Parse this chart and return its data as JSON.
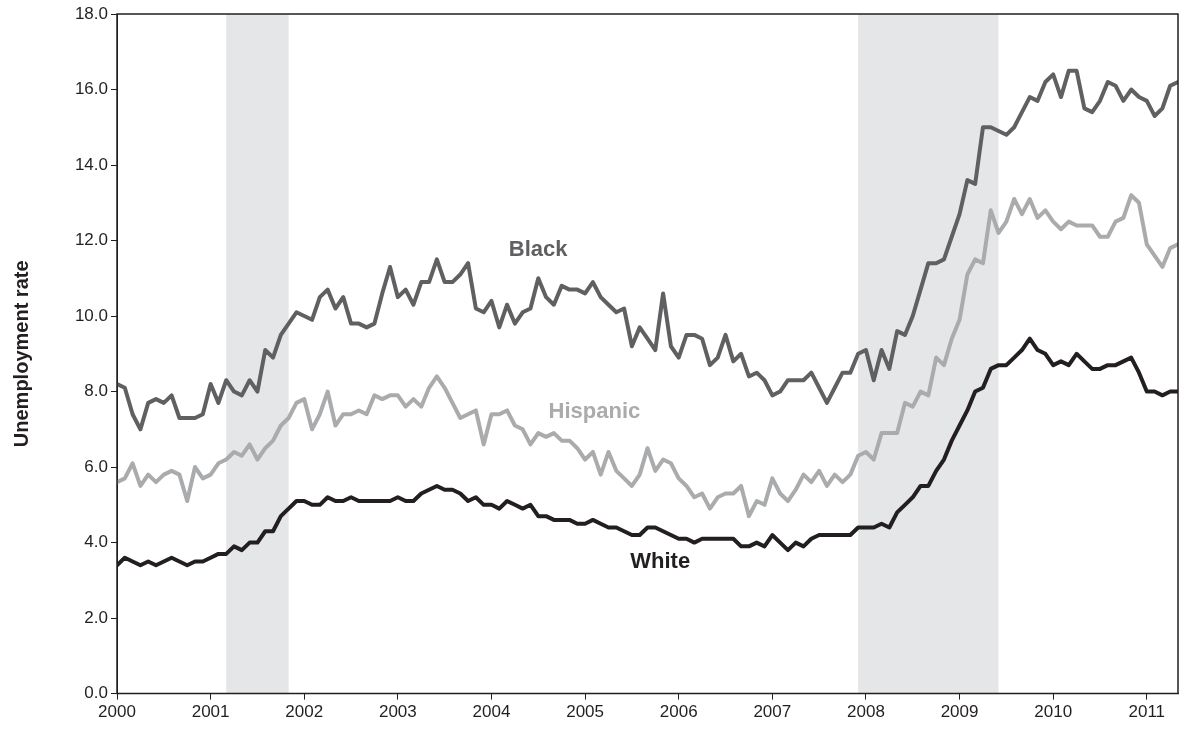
{
  "chart_data": {
    "type": "line",
    "ylabel": "Unemployment rate",
    "x": [
      "2000-01",
      "2000-02",
      "2000-03",
      "2000-04",
      "2000-05",
      "2000-06",
      "2000-07",
      "2000-08",
      "2000-09",
      "2000-10",
      "2000-11",
      "2000-12",
      "2001-01",
      "2001-02",
      "2001-03",
      "2001-04",
      "2001-05",
      "2001-06",
      "2001-07",
      "2001-08",
      "2001-09",
      "2001-10",
      "2001-11",
      "2001-12",
      "2002-01",
      "2002-02",
      "2002-03",
      "2002-04",
      "2002-05",
      "2002-06",
      "2002-07",
      "2002-08",
      "2002-09",
      "2002-10",
      "2002-11",
      "2002-12",
      "2003-01",
      "2003-02",
      "2003-03",
      "2003-04",
      "2003-05",
      "2003-06",
      "2003-07",
      "2003-08",
      "2003-09",
      "2003-10",
      "2003-11",
      "2003-12",
      "2004-01",
      "2004-02",
      "2004-03",
      "2004-04",
      "2004-05",
      "2004-06",
      "2004-07",
      "2004-08",
      "2004-09",
      "2004-10",
      "2004-11",
      "2004-12",
      "2005-01",
      "2005-02",
      "2005-03",
      "2005-04",
      "2005-05",
      "2005-06",
      "2005-07",
      "2005-08",
      "2005-09",
      "2005-10",
      "2005-11",
      "2005-12",
      "2006-01",
      "2006-02",
      "2006-03",
      "2006-04",
      "2006-05",
      "2006-06",
      "2006-07",
      "2006-08",
      "2006-09",
      "2006-10",
      "2006-11",
      "2006-12",
      "2007-01",
      "2007-02",
      "2007-03",
      "2007-04",
      "2007-05",
      "2007-06",
      "2007-07",
      "2007-08",
      "2007-09",
      "2007-10",
      "2007-11",
      "2007-12",
      "2008-01",
      "2008-02",
      "2008-03",
      "2008-04",
      "2008-05",
      "2008-06",
      "2008-07",
      "2008-08",
      "2008-09",
      "2008-10",
      "2008-11",
      "2008-12",
      "2009-01",
      "2009-02",
      "2009-03",
      "2009-04",
      "2009-05",
      "2009-06",
      "2009-07",
      "2009-08",
      "2009-09",
      "2009-10",
      "2009-11",
      "2009-12",
      "2010-01",
      "2010-02",
      "2010-03",
      "2010-04",
      "2010-05",
      "2010-06",
      "2010-07",
      "2010-08",
      "2010-09",
      "2010-10",
      "2010-11",
      "2010-12",
      "2011-01",
      "2011-02",
      "2011-03",
      "2011-04",
      "2011-05"
    ],
    "series": [
      {
        "name": "Black",
        "color": "#606062",
        "values": [
          8.2,
          8.1,
          7.4,
          7.0,
          7.7,
          7.8,
          7.7,
          7.9,
          7.3,
          7.3,
          7.3,
          7.4,
          8.2,
          7.7,
          8.3,
          8.0,
          7.9,
          8.3,
          8.0,
          9.1,
          8.9,
          9.5,
          9.8,
          10.1,
          10.0,
          9.9,
          10.5,
          10.7,
          10.2,
          10.5,
          9.8,
          9.8,
          9.7,
          9.8,
          10.6,
          11.3,
          10.5,
          10.7,
          10.3,
          10.9,
          10.9,
          11.5,
          10.9,
          10.9,
          11.1,
          11.4,
          10.2,
          10.1,
          10.4,
          9.7,
          10.3,
          9.8,
          10.1,
          10.2,
          11.0,
          10.5,
          10.3,
          10.8,
          10.7,
          10.7,
          10.6,
          10.9,
          10.5,
          10.3,
          10.1,
          10.2,
          9.2,
          9.7,
          9.4,
          9.1,
          10.6,
          9.2,
          8.9,
          9.5,
          9.5,
          9.4,
          8.7,
          8.9,
          9.5,
          8.8,
          9.0,
          8.4,
          8.5,
          8.3,
          7.9,
          8.0,
          8.3,
          8.3,
          8.3,
          8.5,
          8.1,
          7.7,
          8.1,
          8.5,
          8.5,
          9.0,
          9.1,
          8.3,
          9.1,
          8.6,
          9.6,
          9.5,
          10.0,
          10.7,
          11.4,
          11.4,
          11.5,
          12.1,
          12.7,
          13.6,
          13.5,
          15.0,
          15.0,
          14.9,
          14.8,
          15.0,
          15.4,
          15.8,
          15.7,
          16.2,
          16.4,
          15.8,
          16.5,
          16.5,
          15.5,
          15.4,
          15.7,
          16.2,
          16.1,
          15.7,
          16.0,
          15.8,
          15.7,
          15.3,
          15.5,
          16.1,
          16.2
        ]
      },
      {
        "name": "Hispanic",
        "color": "#aaabad",
        "values": [
          5.6,
          5.7,
          6.1,
          5.5,
          5.8,
          5.6,
          5.8,
          5.9,
          5.8,
          5.1,
          6.0,
          5.7,
          5.8,
          6.1,
          6.2,
          6.4,
          6.3,
          6.6,
          6.2,
          6.5,
          6.7,
          7.1,
          7.3,
          7.7,
          7.8,
          7.0,
          7.4,
          8.0,
          7.1,
          7.4,
          7.4,
          7.5,
          7.4,
          7.9,
          7.8,
          7.9,
          7.9,
          7.6,
          7.8,
          7.6,
          8.1,
          8.4,
          8.1,
          7.7,
          7.3,
          7.4,
          7.5,
          6.6,
          7.4,
          7.4,
          7.5,
          7.1,
          7.0,
          6.6,
          6.9,
          6.8,
          6.9,
          6.7,
          6.7,
          6.5,
          6.2,
          6.4,
          5.8,
          6.4,
          5.9,
          5.7,
          5.5,
          5.8,
          6.5,
          5.9,
          6.2,
          6.1,
          5.7,
          5.5,
          5.2,
          5.3,
          4.9,
          5.2,
          5.3,
          5.3,
          5.5,
          4.7,
          5.1,
          5.0,
          5.7,
          5.3,
          5.1,
          5.4,
          5.8,
          5.6,
          5.9,
          5.5,
          5.8,
          5.6,
          5.8,
          6.3,
          6.4,
          6.2,
          6.9,
          6.9,
          6.9,
          7.7,
          7.6,
          8.0,
          7.9,
          8.9,
          8.7,
          9.4,
          9.9,
          11.1,
          11.5,
          11.4,
          12.8,
          12.2,
          12.5,
          13.1,
          12.7,
          13.1,
          12.6,
          12.8,
          12.5,
          12.3,
          12.5,
          12.4,
          12.4,
          12.4,
          12.1,
          12.1,
          12.5,
          12.6,
          13.2,
          13.0,
          11.9,
          11.6,
          11.3,
          11.8,
          11.9
        ]
      },
      {
        "name": "White",
        "color": "#231f20",
        "values": [
          3.4,
          3.6,
          3.5,
          3.4,
          3.5,
          3.4,
          3.5,
          3.6,
          3.5,
          3.4,
          3.5,
          3.5,
          3.6,
          3.7,
          3.7,
          3.9,
          3.8,
          4.0,
          4.0,
          4.3,
          4.3,
          4.7,
          4.9,
          5.1,
          5.1,
          5.0,
          5.0,
          5.2,
          5.1,
          5.1,
          5.2,
          5.1,
          5.1,
          5.1,
          5.1,
          5.1,
          5.2,
          5.1,
          5.1,
          5.3,
          5.4,
          5.5,
          5.4,
          5.4,
          5.3,
          5.1,
          5.2,
          5.0,
          5.0,
          4.9,
          5.1,
          5.0,
          4.9,
          5.0,
          4.7,
          4.7,
          4.6,
          4.6,
          4.6,
          4.5,
          4.5,
          4.6,
          4.5,
          4.4,
          4.4,
          4.3,
          4.2,
          4.2,
          4.4,
          4.4,
          4.3,
          4.2,
          4.1,
          4.1,
          4.0,
          4.1,
          4.1,
          4.1,
          4.1,
          4.1,
          3.9,
          3.9,
          4.0,
          3.9,
          4.2,
          4.0,
          3.8,
          4.0,
          3.9,
          4.1,
          4.2,
          4.2,
          4.2,
          4.2,
          4.2,
          4.4,
          4.4,
          4.4,
          4.5,
          4.4,
          4.8,
          5.0,
          5.2,
          5.5,
          5.5,
          5.9,
          6.2,
          6.7,
          7.1,
          7.5,
          8.0,
          8.1,
          8.6,
          8.7,
          8.7,
          8.9,
          9.1,
          9.4,
          9.1,
          9.0,
          8.7,
          8.8,
          8.7,
          9.0,
          8.8,
          8.6,
          8.6,
          8.7,
          8.7,
          8.8,
          8.9,
          8.5,
          8.0,
          8.0,
          7.9,
          8.0,
          8.0
        ]
      }
    ],
    "xlim": [
      "2000-01",
      "2011-05"
    ],
    "xticks": [
      "2000",
      "2001",
      "2002",
      "2003",
      "2004",
      "2005",
      "2006",
      "2007",
      "2008",
      "2009",
      "2010",
      "2011"
    ],
    "ylim": [
      0,
      18
    ],
    "yticks": [
      {
        "value": 0,
        "label": "0.0"
      },
      {
        "value": 2,
        "label": "2.0"
      },
      {
        "value": 4,
        "label": "4.0"
      },
      {
        "value": 6,
        "label": "6.0"
      },
      {
        "value": 8,
        "label": "8.0"
      },
      {
        "value": 10,
        "label": "10.0"
      },
      {
        "value": 12,
        "label": "12.0"
      },
      {
        "value": 14,
        "label": "14.0"
      },
      {
        "value": 16,
        "label": "16.0"
      },
      {
        "value": 18,
        "label": "18.0"
      }
    ],
    "bands": [
      {
        "axis": "x",
        "from": "2001-03",
        "to": "2001-11",
        "color": "#e5e6e8"
      },
      {
        "axis": "x",
        "from": "2007-12",
        "to": "2009-06",
        "color": "#e5e6e8"
      }
    ],
    "grid": false,
    "legend": false,
    "marker": "none",
    "line_style": "solid"
  }
}
